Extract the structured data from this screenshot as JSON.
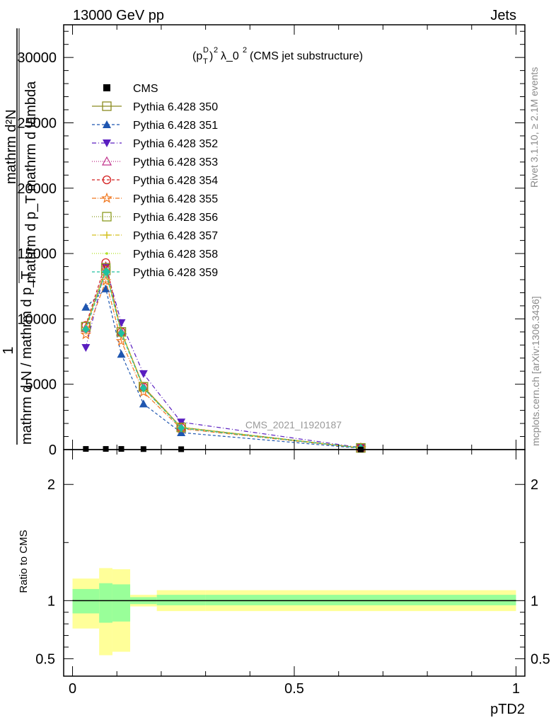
{
  "header": {
    "left": "13000 GeV pp",
    "right": "Jets"
  },
  "side_labels": {
    "rivet": "Rivet 3.1.10, ≥ 2.1M events",
    "mcplots": "mcplots.cern.ch [arXiv:1306.3436]"
  },
  "watermark": "CMS_2021_I1920187",
  "main_title": "(p_T^D)^2 λ_0^2 (CMS jet substructure)",
  "ylabel_main": "1 / mathrm d N / mathrm d p_T · mathrm d²N / mathrm d p_T mathrm d lambda",
  "ylabel_ratio": "Ratio to CMS",
  "xlabel": "pTD2",
  "chart_data": [
    {
      "type": "line",
      "panel": "main",
      "ylim": [
        0,
        32500
      ],
      "xlim": [
        -0.02,
        1.02
      ],
      "y_ticks": [
        0,
        5000,
        10000,
        15000,
        20000,
        25000,
        30000
      ],
      "y_tick_labels": [
        "0",
        "5000",
        "10000",
        "15000",
        "20000",
        "25000",
        "30000"
      ],
      "x": [
        0.03,
        0.075,
        0.11,
        0.16,
        0.245,
        0.65
      ],
      "data_points": {
        "name": "CMS",
        "color": "#000000",
        "y": [
          50,
          50,
          50,
          40,
          30,
          5
        ]
      },
      "series": [
        {
          "name": "Pythia 6.428 350",
          "color": "#8b8b20",
          "dash": "",
          "marker": "square-open",
          "y": [
            9400,
            13700,
            9000,
            4800,
            1700,
            130
          ]
        },
        {
          "name": "Pythia 6.428 351",
          "color": "#1f56b0",
          "dash": "4,3",
          "marker": "triangle-up-filled",
          "y": [
            10900,
            12300,
            7300,
            3500,
            1300,
            100
          ]
        },
        {
          "name": "Pythia 6.428 352",
          "color": "#5a1ec0",
          "dash": "6,3,1,3",
          "marker": "triangle-down-filled",
          "y": [
            7800,
            14000,
            9700,
            5800,
            2100,
            150
          ]
        },
        {
          "name": "Pythia 6.428 353",
          "color": "#c0308a",
          "dash": "1,2",
          "marker": "triangle-up-open",
          "y": [
            9300,
            14000,
            9000,
            4800,
            1700,
            130
          ]
        },
        {
          "name": "Pythia 6.428 354",
          "color": "#d42020",
          "dash": "4,3",
          "marker": "circle-open",
          "y": [
            9500,
            14300,
            9000,
            4800,
            1700,
            130
          ]
        },
        {
          "name": "Pythia 6.428 355",
          "color": "#f07820",
          "dash": "6,2,1,2",
          "marker": "star-open",
          "y": [
            8800,
            12900,
            8300,
            4400,
            1600,
            120
          ]
        },
        {
          "name": "Pythia 6.428 356",
          "color": "#8b9b20",
          "dash": "1,2",
          "marker": "square-open",
          "y": [
            9400,
            13900,
            9000,
            4800,
            1700,
            130
          ]
        },
        {
          "name": "Pythia 6.428 357",
          "color": "#d4c020",
          "dash": "6,2,1,2",
          "marker": "cross",
          "y": [
            9300,
            13800,
            9000,
            4700,
            1700,
            130
          ]
        },
        {
          "name": "Pythia 6.428 358",
          "color": "#b0e020",
          "dash": "1,2",
          "marker": "dot",
          "y": [
            9400,
            13700,
            9000,
            4800,
            1700,
            130
          ]
        },
        {
          "name": "Pythia 6.428 359",
          "color": "#20c0a0",
          "dash": "4,3",
          "marker": "diamond-filled",
          "y": [
            9200,
            13600,
            8900,
            4700,
            1650,
            125
          ]
        }
      ]
    },
    {
      "type": "area",
      "panel": "ratio",
      "ylim": [
        0.35,
        2.3
      ],
      "xlim": [
        -0.02,
        1.02
      ],
      "xlabel": "pTD2",
      "ylabel": "Ratio to CMS",
      "y_ticks": [
        0.5,
        1,
        2
      ],
      "y_tick_labels": [
        "0.5",
        "1",
        "2"
      ],
      "x_ticks": [
        0,
        0.5,
        1
      ],
      "x_tick_labels": [
        "0",
        "0.5",
        "1"
      ],
      "bin_edges": [
        0,
        0.06,
        0.09,
        0.13,
        0.19,
        0.3,
        1.0
      ],
      "yellow_band": {
        "low": [
          0.76,
          0.53,
          0.56,
          0.95,
          0.91,
          0.91
        ],
        "high": [
          1.19,
          1.28,
          1.27,
          1.05,
          1.09,
          1.09
        ]
      },
      "green_band": {
        "low": [
          0.89,
          0.81,
          0.82,
          0.97,
          0.96,
          0.96
        ],
        "high": [
          1.1,
          1.15,
          1.14,
          1.03,
          1.05,
          1.05
        ]
      },
      "reference_line": 1
    }
  ]
}
